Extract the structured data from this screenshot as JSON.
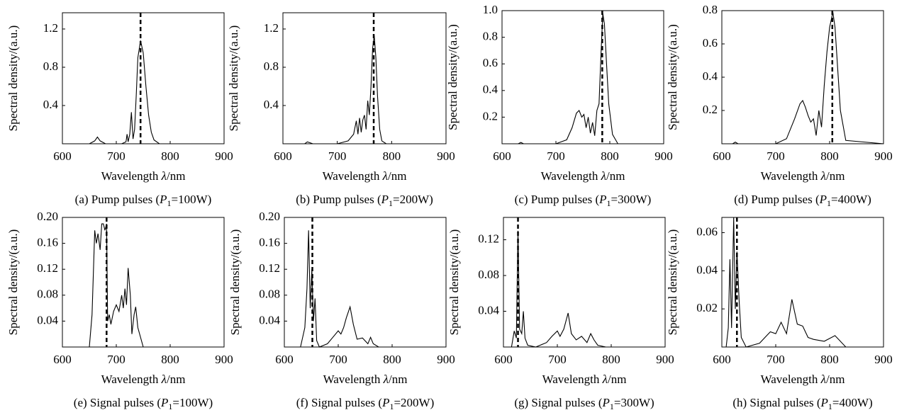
{
  "chart_data": [
    {
      "type": "line",
      "caption": [
        "(a) Pump pulses (",
        "P",
        "1",
        "=100W)"
      ],
      "xlabel": [
        "Wavelength ",
        "λ",
        "/nm"
      ],
      "ylabel": "Spectral density/(a.u.)",
      "color": "#000000",
      "dashed_x": 745,
      "x": [
        600,
        650,
        660,
        665,
        670,
        680,
        710,
        718,
        720,
        722,
        725,
        728,
        731,
        734,
        737,
        740,
        745,
        750,
        755,
        760,
        765,
        770,
        780,
        800,
        900
      ],
      "values": [
        0,
        0,
        0.03,
        0.07,
        0.03,
        0,
        0,
        0.02,
        0.1,
        0.02,
        0.1,
        0.33,
        0.05,
        0.15,
        0.5,
        0.9,
        1.08,
        0.95,
        0.6,
        0.3,
        0.12,
        0.04,
        0,
        0,
        0
      ],
      "xlim": [
        600,
        900
      ],
      "xticks": [
        600,
        700,
        800,
        900
      ],
      "ylim": [
        0,
        1.37
      ],
      "yticks": [
        0.4,
        0.8,
        1.2
      ]
    },
    {
      "type": "line",
      "caption": [
        "(b) Pump pulses (",
        "P",
        "1",
        "=200W)"
      ],
      "xlabel": [
        "Wavelength ",
        "λ",
        "/nm"
      ],
      "ylabel": "Spectral density/(a.u.)",
      "color": "#000000",
      "dashed_x": 767,
      "x": [
        600,
        640,
        645,
        650,
        655,
        700,
        720,
        730,
        735,
        738,
        741,
        744,
        747,
        750,
        753,
        756,
        759,
        762,
        765,
        768,
        771,
        774,
        778,
        782,
        790,
        900
      ],
      "values": [
        0,
        0,
        0.02,
        0.01,
        0,
        0,
        0.03,
        0.1,
        0.24,
        0.1,
        0.27,
        0.12,
        0.25,
        0.3,
        0.15,
        0.45,
        0.3,
        0.6,
        1.0,
        1.13,
        0.9,
        0.5,
        0.15,
        0.03,
        0,
        0
      ],
      "xlim": [
        600,
        900
      ],
      "xticks": [
        600,
        700,
        800,
        900
      ],
      "ylim": [
        0,
        1.37
      ],
      "yticks": [
        0.4,
        0.8,
        1.2
      ]
    },
    {
      "type": "line",
      "caption": [
        "(c) Pump pulses (",
        "P",
        "1",
        "=300W)"
      ],
      "xlabel": [
        "Wavelength ",
        "λ",
        "/nm"
      ],
      "ylabel": "Spectral density/(a.u.)",
      "color": "#000000",
      "dashed_x": 786,
      "x": [
        600,
        630,
        635,
        640,
        700,
        720,
        730,
        738,
        743,
        748,
        752,
        756,
        760,
        764,
        768,
        772,
        776,
        780,
        784,
        787,
        790,
        794,
        798,
        805,
        815,
        900
      ],
      "values": [
        0,
        0,
        0.01,
        0,
        0,
        0.03,
        0.12,
        0.23,
        0.25,
        0.2,
        0.22,
        0.12,
        0.2,
        0.08,
        0.16,
        0.06,
        0.25,
        0.3,
        0.7,
        0.98,
        0.9,
        0.6,
        0.3,
        0.07,
        0,
        0
      ],
      "xlim": [
        600,
        900
      ],
      "xticks": [
        600,
        700,
        800,
        900
      ],
      "ylim": [
        0,
        1
      ],
      "yticks": [
        0.2,
        0.4,
        0.6,
        0.8,
        {
          "value": 1,
          "label": "1.0"
        }
      ]
    },
    {
      "type": "line",
      "caption": [
        "(d) Pump pulses (",
        "P",
        "1",
        "=400W)"
      ],
      "xlabel": [
        "Wavelength ",
        "λ",
        "/nm"
      ],
      "ylabel": "Spectral density/(a.u.)",
      "color": "#000000",
      "dashed_x": 805,
      "x": [
        600,
        620,
        625,
        630,
        700,
        720,
        735,
        745,
        750,
        755,
        760,
        765,
        770,
        775,
        780,
        785,
        790,
        795,
        800,
        806,
        810,
        815,
        820,
        830,
        900
      ],
      "values": [
        0,
        0,
        0.01,
        0,
        0,
        0.03,
        0.15,
        0.24,
        0.26,
        0.22,
        0.17,
        0.13,
        0.15,
        0.05,
        0.2,
        0.1,
        0.35,
        0.55,
        0.7,
        0.79,
        0.7,
        0.45,
        0.2,
        0.02,
        0
      ],
      "xlim": [
        600,
        900
      ],
      "xticks": [
        600,
        700,
        800,
        900
      ],
      "ylim": [
        0,
        0.8
      ],
      "yticks": [
        0.2,
        0.4,
        0.6,
        0.8
      ]
    },
    {
      "type": "line",
      "caption": [
        "(e) Signal pulses (",
        "P",
        "1",
        "=100W)"
      ],
      "xlabel": [
        "Wavelength ",
        "λ",
        "/nm"
      ],
      "ylabel": "Spectral density/(a.u.)",
      "color": "#000000",
      "dashed_x": 682,
      "x": [
        600,
        650,
        655,
        660,
        663,
        666,
        670,
        673,
        676,
        679,
        682,
        684,
        687,
        690,
        695,
        700,
        705,
        710,
        713,
        716,
        719,
        722,
        726,
        729,
        733,
        736,
        740,
        750,
        900
      ],
      "values": [
        0,
        0,
        0.05,
        0.18,
        0.16,
        0.175,
        0.15,
        0.19,
        0.19,
        0.18,
        0.19,
        0.04,
        0.05,
        0.035,
        0.055,
        0.065,
        0.055,
        0.08,
        0.06,
        0.09,
        0.065,
        0.122,
        0.08,
        0.02,
        0.05,
        0.062,
        0.03,
        0,
        0
      ],
      "xlim": [
        600,
        900
      ],
      "xticks": [
        600,
        700,
        800,
        900
      ],
      "ylim": [
        0,
        0.2
      ],
      "yticks": [
        0.04,
        0.08,
        0.12,
        0.16,
        {
          "value": 0.2,
          "label": "0.20"
        }
      ]
    },
    {
      "type": "line",
      "caption": [
        "(f) Signal pulses (",
        "P",
        "1",
        "=200W)"
      ],
      "xlabel": [
        "Wavelength ",
        "λ",
        "/nm"
      ],
      "ylabel": "Spectral density/(a.u.)",
      "color": "#000000",
      "dashed_x": 652,
      "x": [
        600,
        630,
        638,
        642,
        645,
        648,
        651,
        654,
        657,
        660,
        665,
        680,
        690,
        700,
        705,
        710,
        715,
        722,
        728,
        735,
        745,
        755,
        760,
        765,
        775,
        900
      ],
      "values": [
        0,
        0,
        0.03,
        0.09,
        0.18,
        0.06,
        0.12,
        0.04,
        0.075,
        0.01,
        0,
        0.005,
        0.015,
        0.025,
        0.02,
        0.03,
        0.045,
        0.062,
        0.035,
        0.012,
        0.014,
        0.005,
        0.015,
        0.005,
        0,
        0
      ],
      "xlim": [
        600,
        900
      ],
      "xticks": [
        600,
        700,
        800,
        900
      ],
      "ylim": [
        0,
        0.2
      ],
      "yticks": [
        0.04,
        0.08,
        0.12,
        0.16,
        {
          "value": 0.2,
          "label": "0.20"
        }
      ]
    },
    {
      "type": "line",
      "caption": [
        "(g) Signal pulses (",
        "P",
        "1",
        "=300W)"
      ],
      "xlabel": [
        "Wavelength ",
        "λ",
        "/nm"
      ],
      "ylabel": "Spectral density/(a.u.)",
      "color": "#000000",
      "dashed_x": 627,
      "x": [
        600,
        615,
        620,
        624,
        627,
        630,
        634,
        637,
        640,
        645,
        660,
        680,
        690,
        700,
        705,
        712,
        720,
        726,
        735,
        745,
        755,
        762,
        768,
        775,
        790,
        900
      ],
      "values": [
        0,
        0,
        0.018,
        0.01,
        0.13,
        0.02,
        0.015,
        0.04,
        0.01,
        0.002,
        0,
        0.005,
        0.012,
        0.018,
        0.012,
        0.02,
        0.038,
        0.015,
        0.008,
        0.012,
        0.005,
        0.015,
        0.008,
        0.002,
        0,
        0
      ],
      "xlim": [
        600,
        900
      ],
      "xticks": [
        600,
        700,
        800,
        900
      ],
      "ylim": [
        0,
        0.145
      ],
      "yticks": [
        0.04,
        0.08,
        0.12
      ]
    },
    {
      "type": "line",
      "caption": [
        "(h) Signal  pulses (",
        "P",
        "1",
        "=400W)"
      ],
      "xlabel": [
        "Wavelength ",
        "λ",
        "/nm"
      ],
      "ylabel": "Spectral density/(a.u.)",
      "color": "#000000",
      "dashed_x": 628,
      "x": [
        600,
        608,
        612,
        615,
        618,
        622,
        625,
        628,
        632,
        636,
        645,
        670,
        680,
        690,
        700,
        710,
        720,
        730,
        740,
        750,
        760,
        770,
        790,
        810,
        830,
        900
      ],
      "values": [
        0,
        0,
        0.01,
        0.046,
        0.01,
        0.068,
        0.02,
        0.05,
        0.025,
        0.005,
        0,
        0.002,
        0.005,
        0.008,
        0.007,
        0.013,
        0.007,
        0.025,
        0.012,
        0.011,
        0.005,
        0.004,
        0.003,
        0.006,
        0,
        0
      ],
      "xlim": [
        600,
        900
      ],
      "xticks": [
        600,
        700,
        800,
        900
      ],
      "ylim": [
        0,
        0.068
      ],
      "yticks": [
        0.02,
        0.04,
        0.06
      ]
    }
  ]
}
